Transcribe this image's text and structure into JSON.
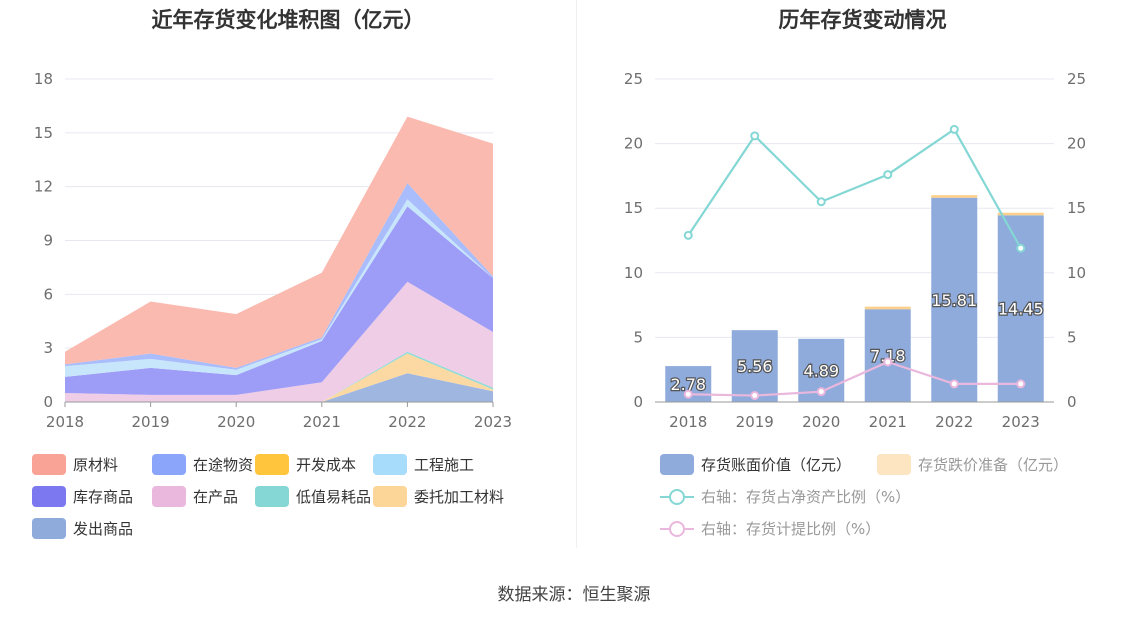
{
  "source": "数据来源：恒生聚源",
  "chart_data": [
    {
      "type": "area",
      "stacked": true,
      "title": "近年存货变化堆积图（亿元）",
      "x": [
        "2018",
        "2019",
        "2020",
        "2021",
        "2022",
        "2023"
      ],
      "ylim": [
        0,
        18
      ],
      "yticks": [
        0,
        3,
        6,
        9,
        12,
        15,
        18
      ],
      "grid": true,
      "legend_position": "bottom",
      "series": [
        {
          "name": "发出商品",
          "color": "#9eb6e0",
          "values": [
            0.0,
            0.0,
            0.0,
            0.0,
            1.6,
            0.6
          ]
        },
        {
          "name": "委托加工材料",
          "color": "#fcd9a3",
          "values": [
            0.0,
            0.0,
            0.0,
            0.0,
            1.1,
            0.1
          ]
        },
        {
          "name": "低值易耗品",
          "color": "#90dbd8",
          "values": [
            0.0,
            0.0,
            0.0,
            0.0,
            0.1,
            0.1
          ]
        },
        {
          "name": "在产品",
          "color": "#efcde6",
          "values": [
            0.5,
            0.4,
            0.4,
            1.1,
            3.9,
            3.1
          ]
        },
        {
          "name": "库存商品",
          "color": "#9d9cf7",
          "values": [
            0.9,
            1.5,
            1.1,
            2.3,
            4.2,
            3.0
          ]
        },
        {
          "name": "工程施工",
          "color": "#c8e6fb",
          "values": [
            0.6,
            0.5,
            0.3,
            0.1,
            0.4,
            0.0
          ]
        },
        {
          "name": "开发成本",
          "color": "#ffd47a",
          "values": [
            0.0,
            0.0,
            0.0,
            0.0,
            0.0,
            0.0
          ]
        },
        {
          "name": "在途物资",
          "color": "#a9bcfb",
          "values": [
            0.1,
            0.3,
            0.1,
            0.1,
            0.9,
            0.1
          ]
        },
        {
          "name": "原材料",
          "color": "#fbbab0",
          "values": [
            0.7,
            2.9,
            3.0,
            3.6,
            3.7,
            7.4
          ]
        }
      ],
      "legend": [
        {
          "name": "原材料",
          "color": "#f9a397"
        },
        {
          "name": "在途物资",
          "color": "#8aa5f9"
        },
        {
          "name": "开发成本",
          "color": "#ffc53d"
        },
        {
          "name": "工程施工",
          "color": "#a8dcfb"
        },
        {
          "name": "库存商品",
          "color": "#7c79f0"
        },
        {
          "name": "在产品",
          "color": "#eab7dd"
        },
        {
          "name": "低值易耗品",
          "color": "#84d7d4"
        },
        {
          "name": "委托加工材料",
          "color": "#fcd699"
        },
        {
          "name": "发出商品",
          "color": "#8eabdc"
        }
      ]
    },
    {
      "type": "bar",
      "title": "历年存货变动情况",
      "categories": [
        "2018",
        "2019",
        "2020",
        "2021",
        "2022",
        "2023"
      ],
      "ylim": [
        0,
        25
      ],
      "yticks": [
        0,
        5,
        10,
        15,
        20,
        25
      ],
      "y2lim": [
        0,
        25
      ],
      "y2ticks": [
        0,
        5,
        10,
        15,
        20,
        25
      ],
      "grid": true,
      "legend_position": "bottom",
      "series": [
        {
          "name": "存货账面价值（亿元）",
          "kind": "bar",
          "color": "#8eabdc",
          "values": [
            2.78,
            5.56,
            4.89,
            7.18,
            15.81,
            14.45
          ],
          "labels": [
            "2.78",
            "5.56",
            "4.89",
            "7.18",
            "15.81",
            "14.45"
          ]
        },
        {
          "name": "存货跌价准备（亿元）",
          "kind": "bar-stack",
          "color": "#fde5c2",
          "values": [
            0.0,
            0.0,
            0.0,
            0.2,
            0.2,
            0.2
          ]
        },
        {
          "name": "右轴：存货占净资产比例（%）",
          "kind": "line",
          "axis": "right",
          "color": "#84d7d4",
          "values": [
            12.9,
            20.6,
            15.5,
            17.6,
            21.1,
            11.9
          ]
        },
        {
          "name": "右轴：存货计提比例（%）",
          "kind": "line",
          "axis": "right",
          "color": "#eab7dd",
          "values": [
            0.6,
            0.5,
            0.8,
            3.1,
            1.4,
            1.4
          ]
        }
      ]
    }
  ]
}
